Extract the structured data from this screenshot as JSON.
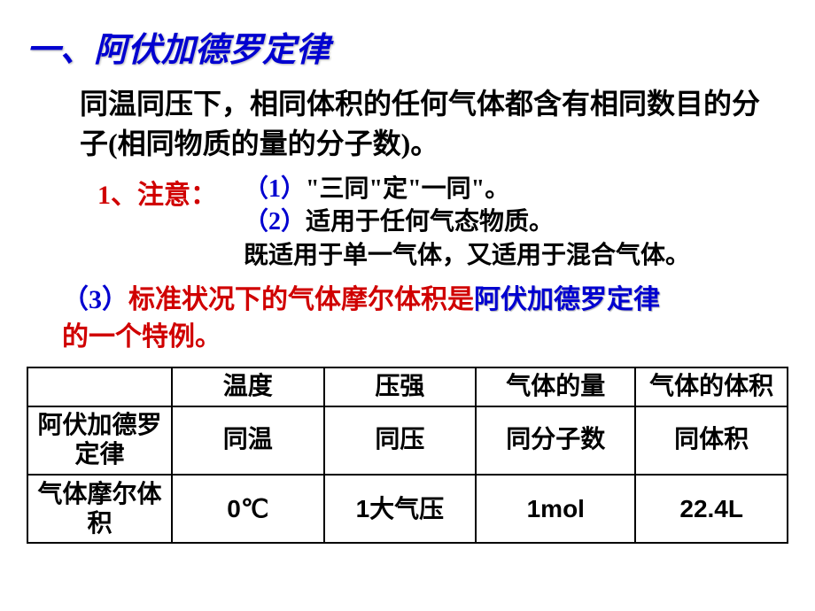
{
  "title": "一、阿伏加德罗定律",
  "main_desc": "同温同压下，相同体积的任何气体都含有相同数目的分子(相同物质的量的分子数)。",
  "note": {
    "label": "1、注意：",
    "item1_num": "（1）",
    "item1_txt": "\"三同\"定\"一同\"。",
    "item2_num": "（2）",
    "item2_txt": "适用于任何气态物质。",
    "item2b": "既适用于单一气体，又适用于混合气体。"
  },
  "point3": {
    "num": "（3）",
    "red": "标准状况下的气体摩尔体积是",
    "blue": "阿伏加德罗定律",
    "tail": "的一个特例。"
  },
  "table": {
    "header": [
      "",
      "温度",
      "压强",
      "气体的量",
      "气体的体积"
    ],
    "row1_label": "阿伏加德罗定律",
    "row1": [
      "同温",
      "同压",
      "同分子数",
      "同体积"
    ],
    "row2_label": "气体摩尔体积",
    "row2": [
      "0℃",
      "1大气压",
      "1mol",
      "22.4L"
    ]
  },
  "style": {
    "title_color": "#0202d0",
    "red": "#d00000",
    "blue": "#0000d0",
    "black": "#000000",
    "border": "#000000",
    "bg": "#ffffff",
    "title_fontsize": 38,
    "body_fontsize": 32,
    "note_fontsize": 28,
    "table_fontsize": 28
  }
}
